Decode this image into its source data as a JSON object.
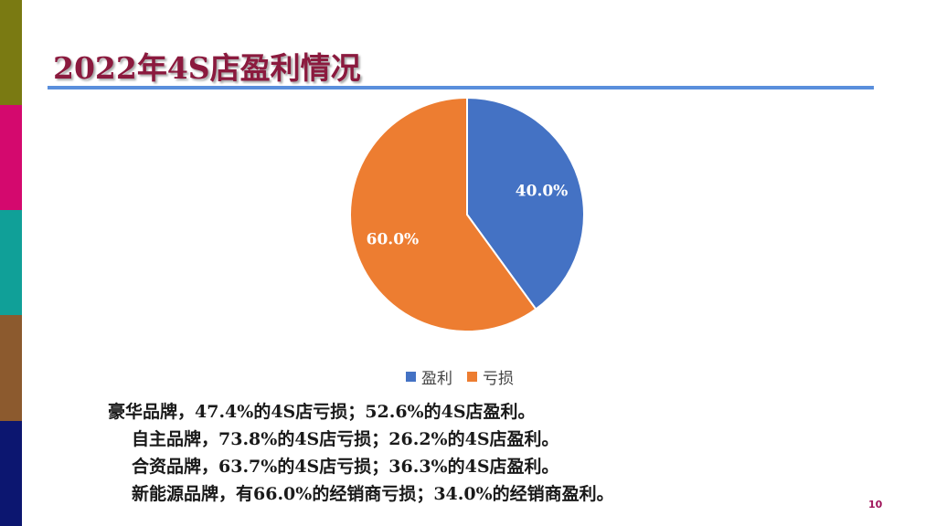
{
  "slide": {
    "title": "2022年4S店盈利情况",
    "page_number": "10"
  },
  "side_bar": {
    "colors": [
      "#7a7a12",
      "#d4096e",
      "#10a098",
      "#8c5a2e",
      "#0c1670"
    ]
  },
  "chart_data": {
    "type": "pie",
    "title": "",
    "slices": [
      {
        "name": "盈利",
        "value": 40.0,
        "label": "40.0%",
        "color": "#4472c4"
      },
      {
        "name": "亏损",
        "value": 60.0,
        "label": "60.0%",
        "color": "#ed7d31"
      }
    ],
    "legend": {
      "placement": "bottom"
    }
  },
  "notes": [
    "豪华品牌，47.4%的4S店亏损；52.6%的4S店盈利。",
    "自主品牌，73.8%的4S店亏损；26.2%的4S店盈利。",
    "合资品牌，63.7%的4S店亏损；36.3%的4S店盈利。",
    "新能源品牌，有66.0%的经销商亏损；34.0%的经销商盈利。"
  ]
}
